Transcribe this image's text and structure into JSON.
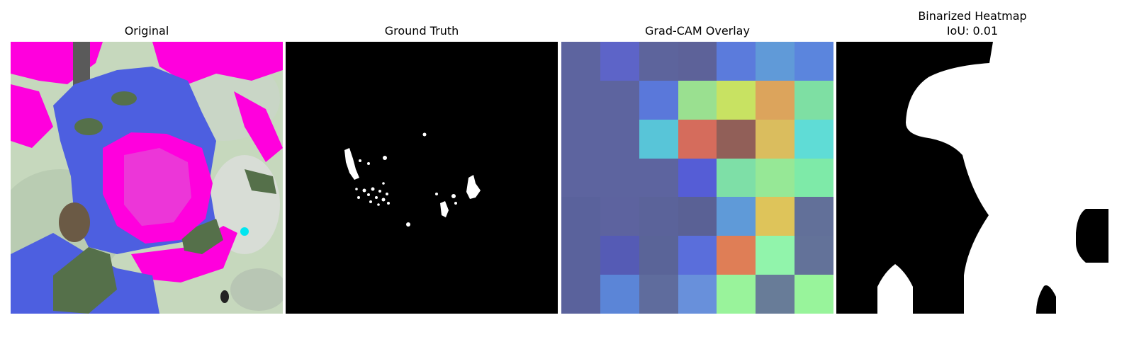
{
  "figure": {
    "panels": [
      {
        "title": "Original",
        "subtitle": ""
      },
      {
        "title": "Ground Truth",
        "subtitle": ""
      },
      {
        "title": "Grad-CAM Overlay",
        "subtitle": ""
      },
      {
        "title": "Binarized Heatmap",
        "subtitle": "IoU: 0.01"
      }
    ],
    "gradcam_grid": [
      [
        "#5d649f",
        "#5d64c8",
        "#5d649c",
        "#5d6299",
        "#5b7bdc",
        "#609ad8",
        "#5b85dd"
      ],
      [
        "#5d649f",
        "#5d649f",
        "#5a78da",
        "#9ae090",
        "#c8e262",
        "#dca45c",
        "#7edfa3"
      ],
      [
        "#5d649f",
        "#5d649f",
        "#58c5d8",
        "#d56c5c",
        "#915f58",
        "#dabd5e",
        "#5fdcd6"
      ],
      [
        "#5d649f",
        "#5d649f",
        "#5d649f",
        "#555dd6",
        "#7edfa7",
        "#96e896",
        "#7eeaa8"
      ],
      [
        "#5a629c",
        "#5d639f",
        "#5b639a",
        "#5a6195",
        "#5f9ad8",
        "#dec45a",
        "#627099"
      ],
      [
        "#5a629c",
        "#555bb5",
        "#5a6498",
        "#5a6edb",
        "#df7e56",
        "#91f4ab",
        "#637299"
      ],
      [
        "#5a629c",
        "#5b85d7",
        "#5f6c9d",
        "#6890db",
        "#99f39b",
        "#687c98",
        "#98f49b"
      ]
    ],
    "colors": {
      "mask_bg": "#000000",
      "mask_fg": "#ffffff",
      "magenta": "#ff00dd",
      "blue_overlay": "#4d5fe0",
      "leaf_green": "#55704a",
      "bg_green": "#c6d8bd"
    }
  }
}
